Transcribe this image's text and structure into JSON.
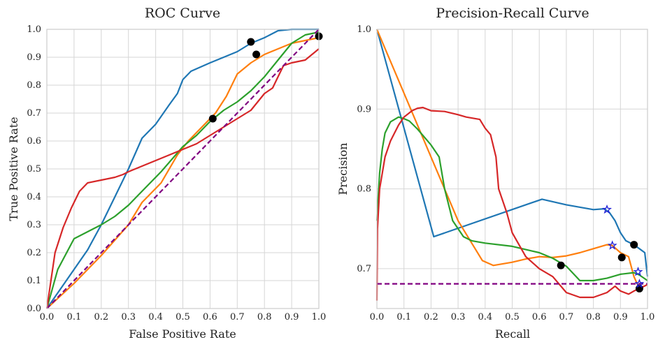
{
  "chart_data": [
    {
      "type": "line",
      "title": "ROC Curve",
      "xlabel": "False Positive Rate",
      "ylabel": "True Positive Rate",
      "xlim": [
        0,
        1
      ],
      "ylim": [
        0,
        1
      ],
      "xticks": [
        "0.0",
        "0.1",
        "0.2",
        "0.3",
        "0.4",
        "0.5",
        "0.6",
        "0.7",
        "0.8",
        "0.9",
        "1.0"
      ],
      "yticks": [
        "0.0",
        "0.1",
        "0.2",
        "0.3",
        "0.4",
        "0.5",
        "0.6",
        "0.7",
        "0.8",
        "0.9",
        "1.0"
      ],
      "grid": true,
      "series": [
        {
          "name": "blue",
          "color": "#1f77b4",
          "x": [
            0,
            0.05,
            0.1,
            0.15,
            0.2,
            0.25,
            0.3,
            0.35,
            0.4,
            0.45,
            0.48,
            0.5,
            0.53,
            0.6,
            0.65,
            0.7,
            0.75,
            0.8,
            0.82,
            0.85,
            0.9,
            0.95,
            1.0
          ],
          "y": [
            0,
            0.07,
            0.14,
            0.21,
            0.3,
            0.4,
            0.5,
            0.61,
            0.66,
            0.73,
            0.77,
            0.82,
            0.85,
            0.88,
            0.9,
            0.92,
            0.95,
            0.97,
            0.98,
            0.995,
            1.0,
            1.0,
            1.0
          ]
        },
        {
          "name": "orange",
          "color": "#ff7f0e",
          "x": [
            0,
            0.1,
            0.2,
            0.3,
            0.35,
            0.42,
            0.48,
            0.52,
            0.58,
            0.62,
            0.66,
            0.7,
            0.75,
            0.8,
            0.85,
            0.9,
            0.95,
            1.0
          ],
          "y": [
            0,
            0.09,
            0.19,
            0.3,
            0.38,
            0.45,
            0.55,
            0.6,
            0.66,
            0.7,
            0.76,
            0.84,
            0.88,
            0.91,
            0.93,
            0.95,
            0.96,
            0.97
          ]
        },
        {
          "name": "green",
          "color": "#2ca02c",
          "x": [
            0,
            0.04,
            0.1,
            0.2,
            0.25,
            0.3,
            0.35,
            0.42,
            0.5,
            0.55,
            0.6,
            0.65,
            0.7,
            0.75,
            0.8,
            0.85,
            0.9,
            0.95,
            1.0
          ],
          "y": [
            0,
            0.14,
            0.25,
            0.3,
            0.33,
            0.37,
            0.42,
            0.49,
            0.58,
            0.62,
            0.67,
            0.71,
            0.74,
            0.78,
            0.83,
            0.89,
            0.95,
            0.98,
            0.99
          ]
        },
        {
          "name": "red",
          "color": "#d62728",
          "x": [
            0,
            0.03,
            0.06,
            0.09,
            0.12,
            0.15,
            0.2,
            0.25,
            0.28,
            0.3,
            0.35,
            0.4,
            0.45,
            0.5,
            0.55,
            0.6,
            0.65,
            0.7,
            0.75,
            0.8,
            0.83,
            0.85,
            0.87,
            0.9,
            0.95,
            1.0
          ],
          "y": [
            0,
            0.2,
            0.29,
            0.36,
            0.42,
            0.45,
            0.46,
            0.47,
            0.48,
            0.49,
            0.51,
            0.53,
            0.55,
            0.57,
            0.59,
            0.62,
            0.65,
            0.68,
            0.71,
            0.77,
            0.79,
            0.83,
            0.87,
            0.88,
            0.89,
            0.93
          ]
        },
        {
          "name": "chance",
          "color": "#800080",
          "dashed": true,
          "x": [
            0,
            1
          ],
          "y": [
            0,
            1
          ]
        }
      ],
      "markers": [
        {
          "x": 0.75,
          "y": 0.955,
          "color": "#000000"
        },
        {
          "x": 0.77,
          "y": 0.91,
          "color": "#000000"
        },
        {
          "x": 0.61,
          "y": 0.68,
          "color": "#000000"
        },
        {
          "x": 1.0,
          "y": 0.975,
          "color": "#000000"
        }
      ]
    },
    {
      "type": "line",
      "title": "Precision-Recall Curve",
      "xlabel": "Recall",
      "ylabel": "Precision",
      "xlim": [
        0,
        1
      ],
      "ylim": [
        0.65,
        1.0
      ],
      "xticks": [
        "0.0",
        "0.1",
        "0.2",
        "0.3",
        "0.4",
        "0.5",
        "0.6",
        "0.7",
        "0.8",
        "0.9",
        "1.0"
      ],
      "yticks": [
        "0.7",
        "0.8",
        "0.9",
        "1.0"
      ],
      "yticks_values": [
        0.7,
        0.8,
        0.9,
        1.0
      ],
      "grid": true,
      "series": [
        {
          "name": "blue",
          "color": "#1f77b4",
          "x": [
            0,
            0.21,
            0.61,
            0.7,
            0.8,
            0.84,
            0.86,
            0.88,
            0.9,
            0.92,
            0.95,
            0.97,
            0.99,
            1.0
          ],
          "y": [
            1.0,
            0.74,
            0.787,
            0.78,
            0.774,
            0.775,
            0.77,
            0.76,
            0.745,
            0.735,
            0.73,
            0.725,
            0.72,
            0.69
          ]
        },
        {
          "name": "orange",
          "color": "#ff7f0e",
          "x": [
            0,
            0.1,
            0.2,
            0.3,
            0.39,
            0.43,
            0.5,
            0.55,
            0.6,
            0.65,
            0.7,
            0.75,
            0.8,
            0.85,
            0.87,
            0.9,
            0.93,
            0.95,
            0.97,
            1.0
          ],
          "y": [
            1.0,
            0.92,
            0.84,
            0.76,
            0.71,
            0.704,
            0.708,
            0.712,
            0.715,
            0.714,
            0.716,
            0.72,
            0.725,
            0.73,
            0.729,
            0.72,
            0.715,
            0.69,
            0.675,
            0.68
          ]
        },
        {
          "name": "green",
          "color": "#2ca02c",
          "x": [
            0,
            0.005,
            0.01,
            0.02,
            0.03,
            0.05,
            0.08,
            0.1,
            0.12,
            0.15,
            0.2,
            0.23,
            0.25,
            0.28,
            0.32,
            0.35,
            0.4,
            0.5,
            0.6,
            0.65,
            0.7,
            0.75,
            0.8,
            0.85,
            0.9,
            0.95,
            0.97,
            1.0
          ],
          "y": [
            0.76,
            0.79,
            0.82,
            0.85,
            0.87,
            0.884,
            0.89,
            0.888,
            0.885,
            0.875,
            0.855,
            0.84,
            0.8,
            0.76,
            0.74,
            0.735,
            0.732,
            0.728,
            0.72,
            0.713,
            0.703,
            0.685,
            0.685,
            0.688,
            0.693,
            0.695,
            0.692,
            0.685
          ]
        },
        {
          "name": "red",
          "color": "#d62728",
          "x": [
            0,
            0.002,
            0.01,
            0.03,
            0.05,
            0.08,
            0.1,
            0.13,
            0.15,
            0.17,
            0.2,
            0.25,
            0.3,
            0.33,
            0.38,
            0.4,
            0.42,
            0.44,
            0.45,
            0.48,
            0.5,
            0.55,
            0.6,
            0.65,
            0.7,
            0.75,
            0.8,
            0.85,
            0.88,
            0.9,
            0.93,
            0.95,
            0.97,
            1.0
          ],
          "y": [
            0.66,
            0.75,
            0.8,
            0.84,
            0.86,
            0.88,
            0.89,
            0.898,
            0.901,
            0.902,
            0.898,
            0.897,
            0.893,
            0.89,
            0.887,
            0.876,
            0.868,
            0.84,
            0.8,
            0.77,
            0.745,
            0.715,
            0.7,
            0.69,
            0.67,
            0.664,
            0.664,
            0.67,
            0.678,
            0.672,
            0.668,
            0.672,
            0.675,
            0.68
          ]
        },
        {
          "name": "baseline",
          "color": "#800080",
          "dashed": true,
          "x": [
            0,
            1
          ],
          "y": [
            0.681,
            0.681
          ]
        }
      ],
      "markers": [
        {
          "x": 0.68,
          "y": 0.704,
          "color": "#000000"
        },
        {
          "x": 0.95,
          "y": 0.73,
          "color": "#000000"
        },
        {
          "x": 0.905,
          "y": 0.714,
          "color": "#000000"
        },
        {
          "x": 0.97,
          "y": 0.675,
          "color": "#000000"
        }
      ],
      "stars": [
        {
          "x": 0.85,
          "y": 0.774,
          "color": "#1f1fd6"
        },
        {
          "x": 0.87,
          "y": 0.729,
          "color": "#1f1fd6"
        },
        {
          "x": 0.965,
          "y": 0.696,
          "color": "#1f1fd6"
        },
        {
          "x": 0.97,
          "y": 0.681,
          "color": "#1f1fd6"
        }
      ]
    }
  ]
}
